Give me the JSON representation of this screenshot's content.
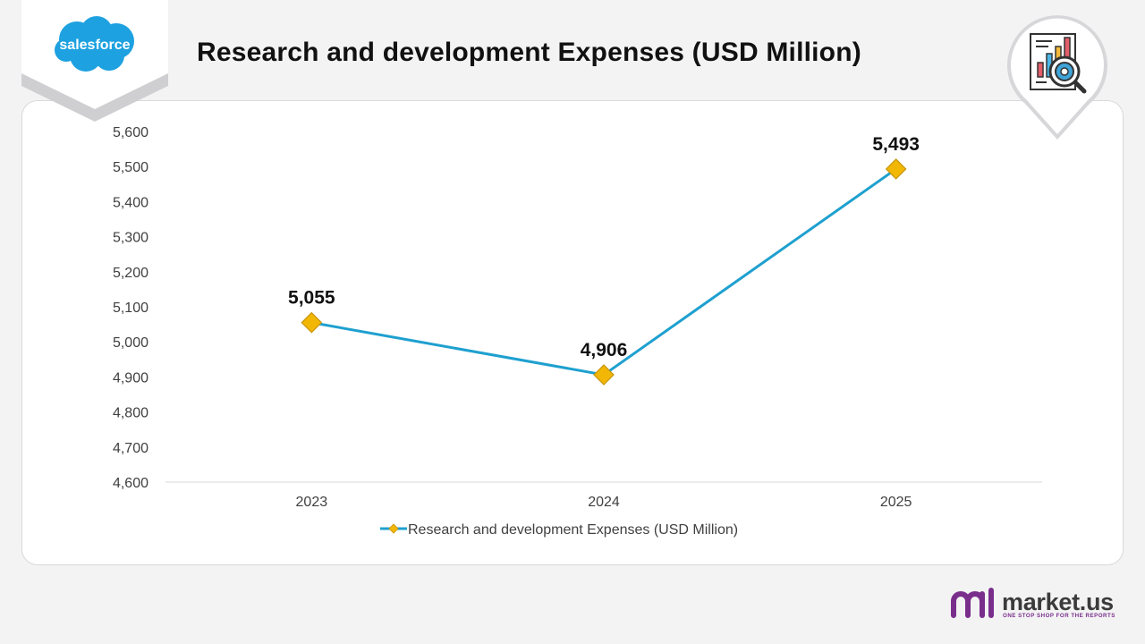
{
  "header": {
    "title": "Research and development Expenses (USD Million)",
    "company_logo_text": "salesforce"
  },
  "brand": {
    "name": "market.us",
    "tagline": "ONE STOP SHOP FOR THE REPORTS"
  },
  "colors": {
    "line": "#1ea0cf",
    "marker": "#f2b705",
    "marker_stroke": "#c7950a",
    "logo_blue": "#1da1e0",
    "brand_purple": "#7a2e8c"
  },
  "chart_data": {
    "type": "line",
    "title": "Research and development Expenses (USD Million)",
    "categories": [
      "2023",
      "2024",
      "2025"
    ],
    "series": [
      {
        "name": "Research and development Expenses (USD Million)",
        "values": [
          5055,
          4906,
          5493
        ],
        "data_labels": [
          "5,055",
          "4,906",
          "5,493"
        ]
      }
    ],
    "ylim": [
      4600,
      5600
    ],
    "y_ticks": [
      4600,
      4700,
      4800,
      4900,
      5000,
      5100,
      5200,
      5300,
      5400,
      5500,
      5600
    ],
    "y_tick_labels": [
      "4,600",
      "4,700",
      "4,800",
      "4,900",
      "5,000",
      "5,100",
      "5,200",
      "5,300",
      "5,400",
      "5,500",
      "5,600"
    ],
    "xlabel": "",
    "ylabel": "",
    "grid": false,
    "legend": "bottom"
  }
}
